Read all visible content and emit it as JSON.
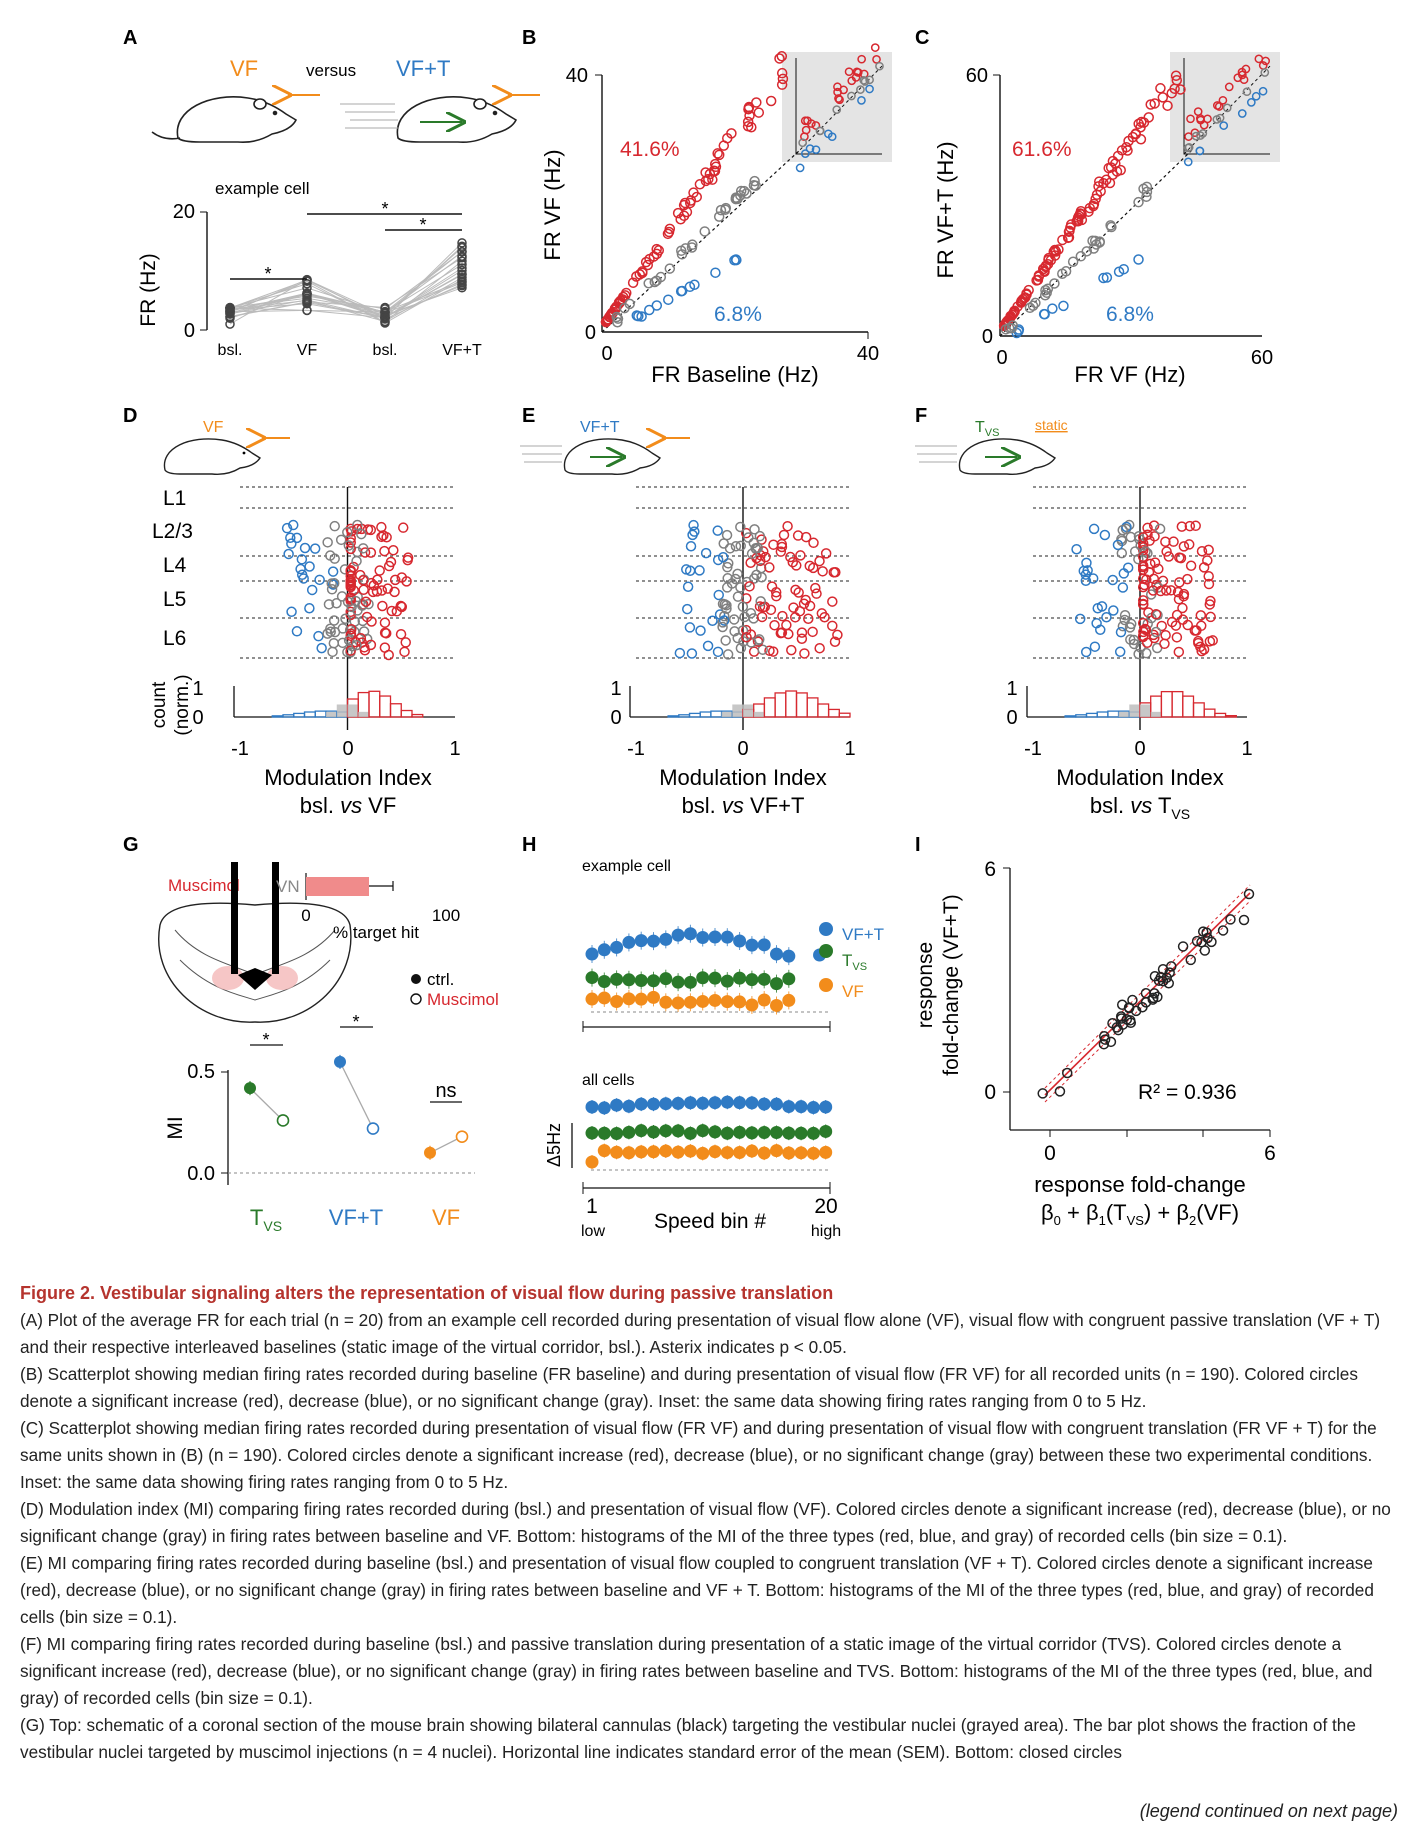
{
  "panel_labels": [
    "A",
    "B",
    "C",
    "D",
    "E",
    "F",
    "G",
    "H",
    "I"
  ],
  "colors": {
    "red": "#d7282f",
    "blue": "#2f7ac4",
    "gray": "#7f7f7f",
    "orange": "#f28c1b",
    "green": "#2a7a2a",
    "inset_bg": "#e4e4e4"
  },
  "panelA": {
    "vf": "VF",
    "versus": "versus",
    "vft": "VF+T",
    "example_cell": "example cell",
    "ylabel": "FR (Hz)",
    "yticks": [
      "20",
      "0"
    ],
    "xticks": [
      "bsl.",
      "VF",
      "bsl.",
      "VF+T"
    ],
    "star": "*"
  },
  "panelB": {
    "ylabel": "FR VF (Hz)",
    "xlabel": "FR Baseline (Hz)",
    "ytick_top": "40",
    "ytick_zero": "0",
    "xtick_zero": "0",
    "xtick_right": "40",
    "pct_increase": "41.6%",
    "pct_decrease": "6.8%"
  },
  "panelC": {
    "ylabel": "FR VF+T (Hz)",
    "xlabel": "FR VF (Hz)",
    "ytick_top": "60",
    "ytick_zero": "0",
    "xtick_zero": "0",
    "xtick_right": "60",
    "pct_increase": "61.6%",
    "pct_decrease": "6.8%"
  },
  "panelD": {
    "stim": "VF",
    "layers": [
      "L1",
      "L2/3",
      "L4",
      "L5",
      "L6"
    ],
    "count_label_1": "count",
    "count_label_2": "(norm.)",
    "yticks": [
      "1",
      "0"
    ],
    "xticks": [
      "-1",
      "0",
      "1"
    ],
    "xlabel": "Modulation Index",
    "sub_pre": "bsl. ",
    "sub_vs": "vs",
    "sub_post": " VF"
  },
  "panelE": {
    "stim": "VF+T",
    "yticks": [
      "1",
      "0"
    ],
    "xticks": [
      "-1",
      "0",
      "1"
    ],
    "xlabel": "Modulation Index",
    "sub_pre": "bsl. ",
    "sub_vs": "vs",
    "sub_post": " VF+T"
  },
  "panelF": {
    "stim_t": "T",
    "stim_sub": "VS",
    "static": "static",
    "yticks": [
      "1",
      "0"
    ],
    "xticks": [
      "-1",
      "0",
      "1"
    ],
    "xlabel": "Modulation Index",
    "sub_pre": "bsl. ",
    "sub_vs": "vs",
    "sub_post": " T",
    "sub_post_sub": "VS"
  },
  "panelG": {
    "muscimol_label": "Muscimol",
    "vn": "VN",
    "bar_xticks": [
      "0",
      "100"
    ],
    "bar_xlabel": "% target hit",
    "target_hit_pct": 45,
    "legend_ctrl": "ctrl.",
    "legend_musc": "Muscimol",
    "ylabel": "MI",
    "yticks": [
      "0.5",
      "0.0"
    ],
    "ns": "ns",
    "star": "*",
    "groups": [
      {
        "label": "T",
        "sub": "VS",
        "ctrl": 0.42,
        "musc": 0.26
      },
      {
        "label": "VF+T",
        "sub": "",
        "ctrl": 0.55,
        "musc": 0.22
      },
      {
        "label": "VF",
        "sub": "",
        "ctrl": 0.1,
        "musc": 0.18
      }
    ]
  },
  "panelH": {
    "example_cell": "example cell",
    "all_cells": "all cells",
    "scale": "Δ5Hz",
    "legend": [
      {
        "t": "VF+T",
        "s": ""
      },
      {
        "t": "T",
        "s": "VS"
      },
      {
        "t": "VF",
        "s": ""
      }
    ],
    "xlabel": "Speed bin #",
    "x_low_num": "1",
    "x_low": "low",
    "x_high_num": "20",
    "x_high": "high"
  },
  "panelI": {
    "ylabel_1": "response",
    "ylabel_2": "fold-change (VF+T)",
    "yticks": [
      "6",
      "0"
    ],
    "xticks": [
      "0",
      "6"
    ],
    "r2": "R² = 0.936",
    "xlabel_1": "response fold-change",
    "xlabel_2_parts": {
      "b0": "β",
      "b0s": "0",
      "plus1": " + β",
      "b1s": "1",
      "tvs": "(T",
      "tvss": "VS",
      "close1": ")  +  β",
      "b2s": "2",
      "vf": "(VF)"
    }
  },
  "chart_data": [
    {
      "type": "scatter",
      "panel": "B",
      "xlabel": "FR Baseline (Hz)",
      "ylabel": "FR VF (Hz)",
      "xlim": [
        0,
        40
      ],
      "ylim": [
        0,
        40
      ],
      "annotations": [
        "41.6%",
        "6.8%"
      ],
      "n_units": 190
    },
    {
      "type": "scatter",
      "panel": "C",
      "xlabel": "FR VF (Hz)",
      "ylabel": "FR VF+T (Hz)",
      "xlim": [
        0,
        60
      ],
      "ylim": [
        0,
        60
      ],
      "annotations": [
        "61.6%",
        "6.8%"
      ],
      "n_units": 190
    },
    {
      "type": "line",
      "panel": "G",
      "ylabel": "MI",
      "categories": [
        "TVS",
        "VF+T",
        "VF"
      ],
      "series": [
        {
          "name": "ctrl.",
          "values": [
            0.42,
            0.55,
            0.1
          ]
        },
        {
          "name": "Muscimol",
          "values": [
            0.26,
            0.22,
            0.18
          ]
        }
      ],
      "ylim": [
        0,
        0.6
      ]
    },
    {
      "type": "scatter",
      "panel": "I",
      "xlim": [
        0,
        6
      ],
      "ylim": [
        0,
        6
      ],
      "annotations": [
        "R² = 0.936"
      ]
    }
  ],
  "legend": {
    "title": "Figure 2. Vestibular signaling alters the representation of visual flow during passive translation",
    "paragraphs": [
      "(A) Plot of the average FR for each trial (n = 20) from an example cell recorded during presentation of visual flow alone (VF), visual flow with congruent passive translation (VF + T) and their respective interleaved baselines (static image of the virtual corridor, bsl.). Asterix indicates p < 0.05.",
      "(B) Scatterplot showing median firing rates recorded during baseline (FR baseline) and during presentation of visual flow (FR VF) for all recorded units (n = 190). Colored circles denote a significant increase (red), decrease (blue), or no significant change (gray). Inset: the same data showing firing rates ranging from 0 to 5 Hz.",
      "(C) Scatterplot showing median firing rates recorded during presentation of visual flow (FR VF) and during presentation of visual flow with congruent translation (FR VF + T) for the same units shown in (B) (n = 190). Colored circles denote a significant increase (red), decrease (blue), or no significant change (gray) between these two experimental conditions. Inset: the same data showing firing rates ranging from 0 to 5 Hz.",
      "(D) Modulation index (MI) comparing firing rates recorded during (bsl.) and presentation of visual flow (VF). Colored circles denote a significant increase (red), decrease (blue), or no significant change (gray) in firing rates between baseline and VF. Bottom: histograms of the MI of the three types (red, blue, and gray) of recorded cells (bin size = 0.1).",
      "(E) MI comparing firing rates recorded during baseline (bsl.) and presentation of visual flow coupled to congruent translation (VF + T). Colored circles denote a significant increase (red), decrease (blue), or no significant change (gray) in firing rates between baseline and VF + T. Bottom: histograms of the MI of the three types (red, blue, and gray) of recorded cells (bin size = 0.1).",
      "(F) MI comparing firing rates recorded during baseline (bsl.) and passive translation during presentation of a static image of the virtual corridor (TVS). Colored circles denote a significant increase (red), decrease (blue), or no significant change (gray) in firing rates between baseline and TVS. Bottom: histograms of the MI of the three types (red, blue, and gray) of recorded cells (bin size = 0.1).",
      "(G) Top: schematic of a coronal section of the mouse brain showing bilateral cannulas (black) targeting the vestibular nuclei (grayed area). The bar plot shows the fraction of the vestibular nuclei targeted by muscimol injections (n = 4 nuclei). Horizontal line indicates standard error of the mean (SEM). Bottom: closed circles"
    ],
    "continued": "(legend continued on next page)"
  }
}
